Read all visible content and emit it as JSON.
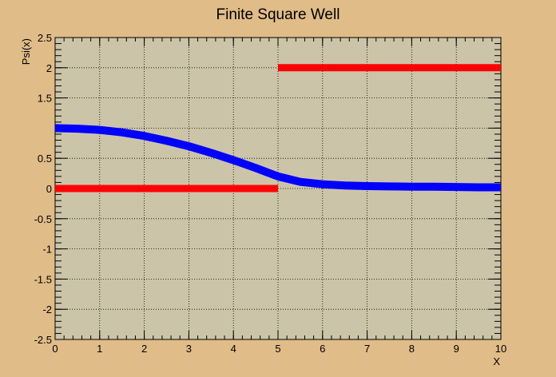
{
  "chart_data": {
    "type": "line",
    "title": "Finite Square Well",
    "xlabel": "X",
    "ylabel": "Psi(x)",
    "xlim": [
      0,
      10
    ],
    "ylim": [
      -2.5,
      2.5
    ],
    "grid": true,
    "x_ticks": [
      "0",
      "1",
      "2",
      "3",
      "4",
      "5",
      "6",
      "7",
      "8",
      "9",
      "10"
    ],
    "y_ticks": [
      "-2.5",
      "-2",
      "-1.5",
      "-1",
      "-0.5",
      "0",
      "0.5",
      "1.5",
      "2",
      "2.5"
    ],
    "series": [
      {
        "color": "#ff0000",
        "segments": [
          {
            "x": [
              0,
              5
            ],
            "y": [
              0,
              0
            ]
          },
          {
            "x": [
              5,
              10
            ],
            "y": [
              2,
              2
            ]
          }
        ]
      },
      {
        "color": "#0000ff",
        "x": [
          0,
          0.5,
          1,
          1.5,
          2,
          2.5,
          3,
          3.5,
          4,
          4.5,
          5,
          5.5,
          6,
          6.5,
          7,
          7.5,
          8,
          8.5,
          9,
          9.5,
          10
        ],
        "y": [
          1.0,
          0.99,
          0.97,
          0.93,
          0.87,
          0.79,
          0.7,
          0.59,
          0.47,
          0.34,
          0.2,
          0.11,
          0.07,
          0.05,
          0.04,
          0.035,
          0.03,
          0.03,
          0.025,
          0.02,
          0.02
        ]
      }
    ],
    "colors": {
      "background": "#e0bc88",
      "plot_area": "#ccc4a8"
    }
  }
}
